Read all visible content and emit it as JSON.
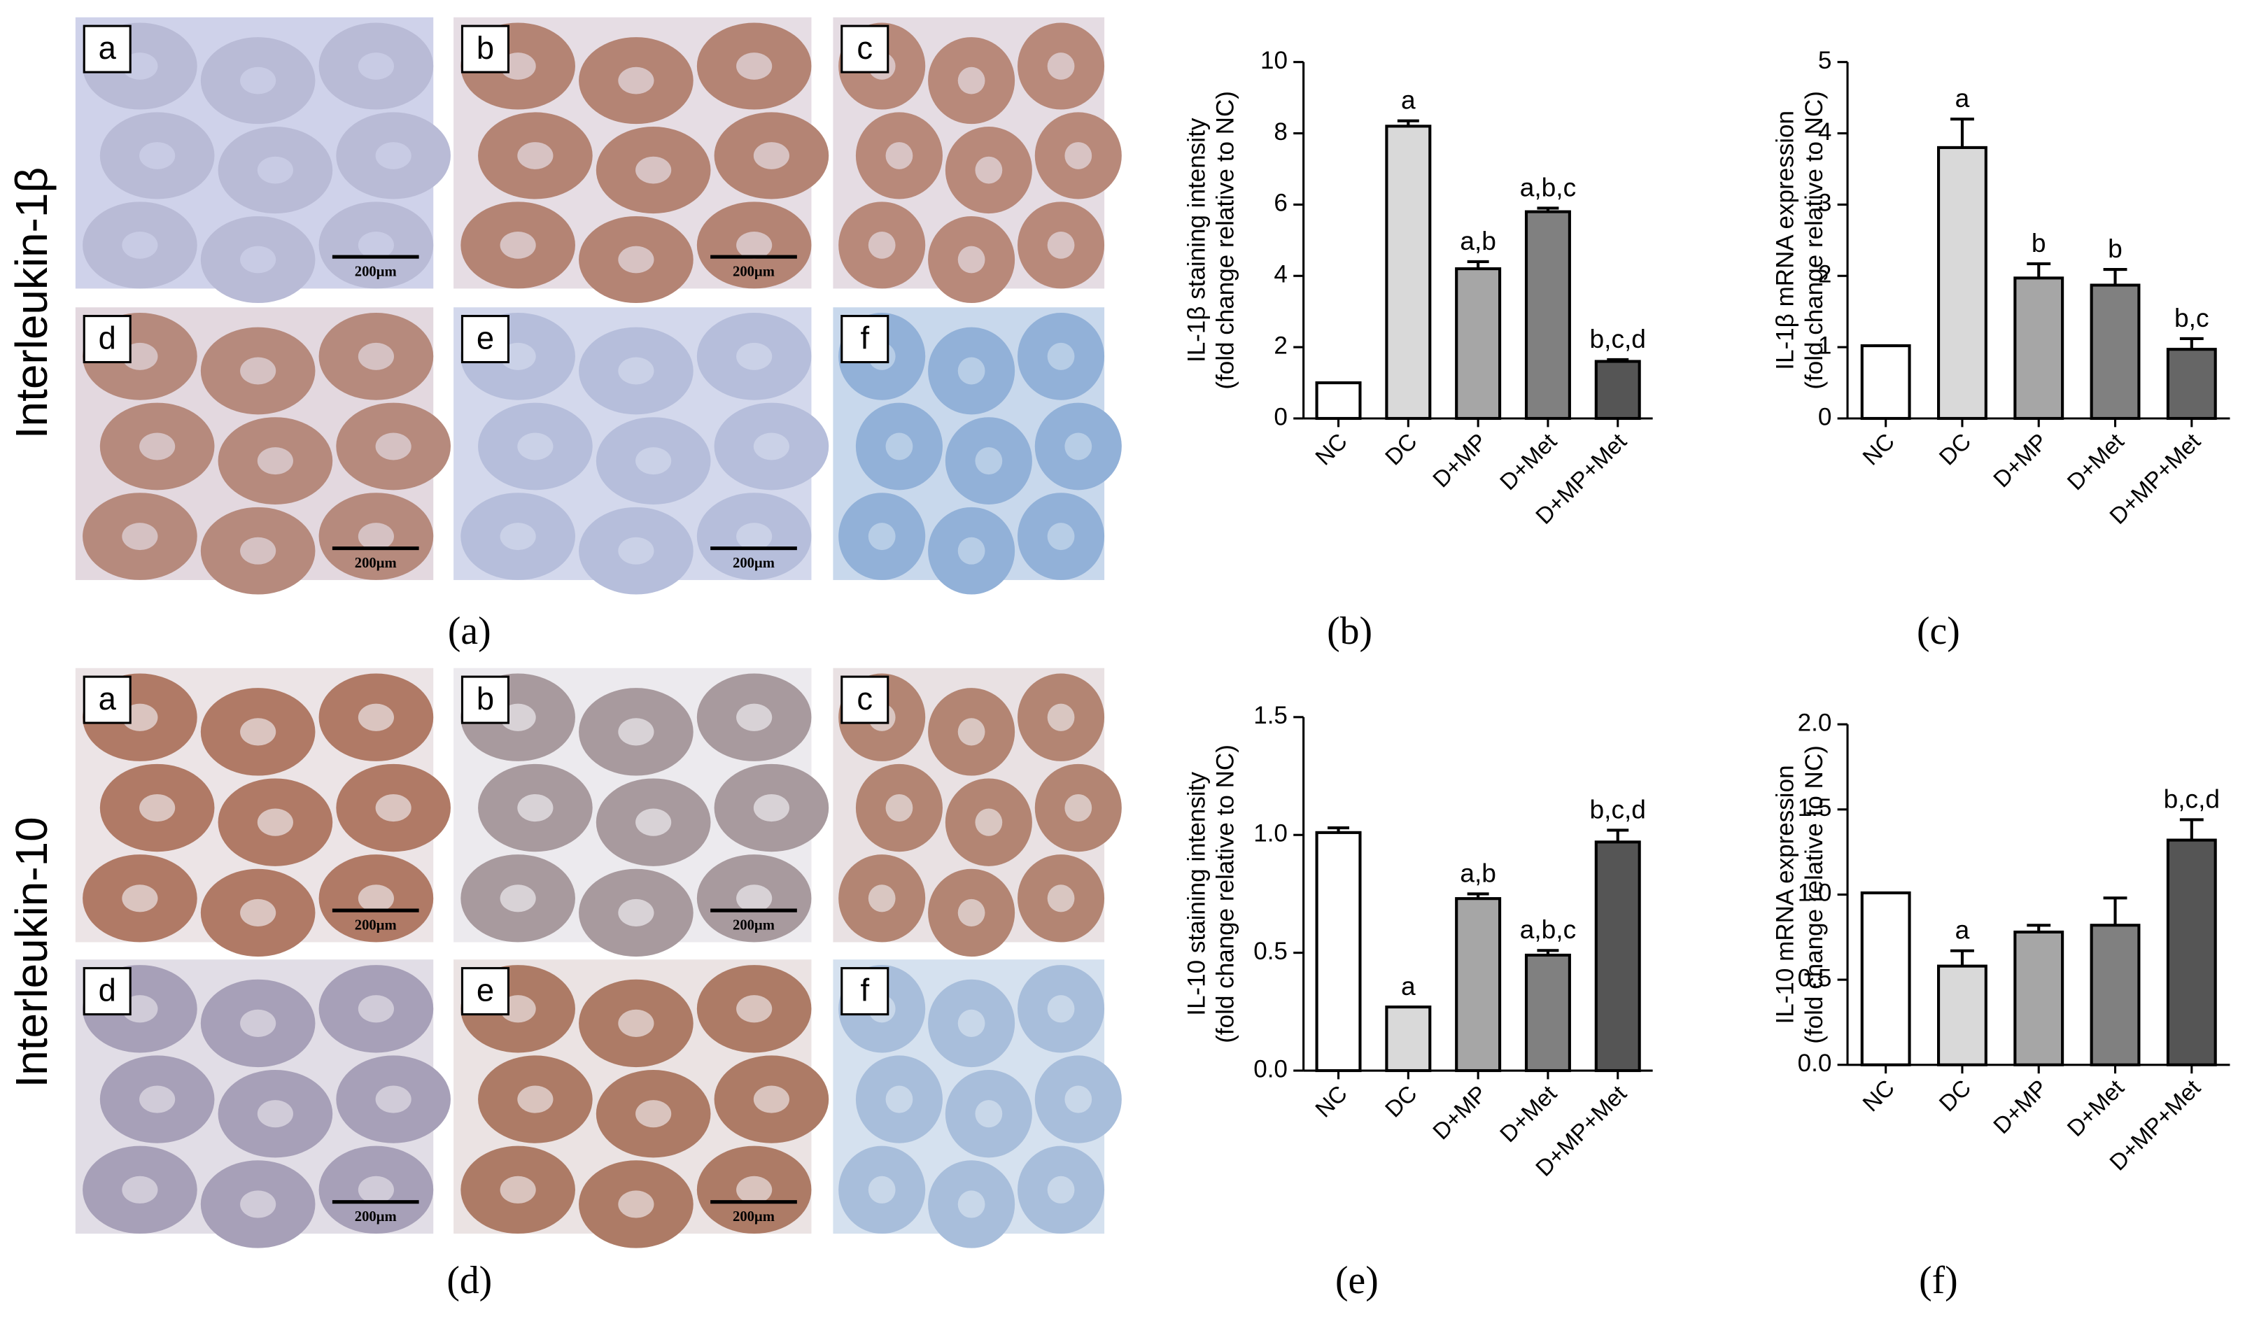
{
  "row_labels": [
    "Interleukin-1β",
    "Interleukin-10"
  ],
  "panel_captions": [
    "(a)",
    "(b)",
    "(c)",
    "(d)",
    "(e)",
    "(f)"
  ],
  "image_letters": [
    "a",
    "b",
    "c",
    "d",
    "e",
    "f"
  ],
  "scale_bar": "200µm",
  "chart_data": [
    {
      "type": "bar",
      "ylabel": [
        "IL-1β staining intensity",
        "(fold change relative to NC)"
      ],
      "categories": [
        "NC",
        "DC",
        "D+MP",
        "D+Met",
        "D+MP+Met"
      ],
      "values": [
        1.0,
        8.2,
        4.2,
        5.8,
        1.6
      ],
      "errors": [
        0,
        0.15,
        0.2,
        0.1,
        0.05
      ],
      "annotations": [
        null,
        "a",
        "a,b",
        "a,b,c",
        "b,c,d"
      ],
      "colors": [
        "#ffffff",
        "#d9d9d9",
        "#a6a6a6",
        "#808080",
        "#555555"
      ],
      "ylim": [
        0,
        10
      ],
      "yticks": [
        0,
        2,
        4,
        6,
        8,
        10
      ]
    },
    {
      "type": "bar",
      "ylabel": [
        "IL-1β mRNA expression",
        "(fold change relative to NC)"
      ],
      "categories": [
        "NC",
        "DC",
        "D+MP",
        "D+Met",
        "D+MP+Met"
      ],
      "values": [
        1.02,
        3.8,
        1.97,
        1.87,
        0.97
      ],
      "errors": [
        0,
        0.4,
        0.2,
        0.22,
        0.15
      ],
      "annotations": [
        null,
        "a",
        "b",
        "b",
        "b,c"
      ],
      "colors": [
        "#ffffff",
        "#d9d9d9",
        "#a6a6a6",
        "#808080",
        "#666666"
      ],
      "ylim": [
        0,
        5
      ],
      "yticks": [
        0,
        1,
        2,
        3,
        4,
        5
      ]
    },
    {
      "type": "bar",
      "ylabel": [
        "IL-10 staining intensity",
        "(fold change relative to NC)"
      ],
      "categories": [
        "NC",
        "DC",
        "D+MP",
        "D+Met",
        "D+MP+Met"
      ],
      "values": [
        1.01,
        0.27,
        0.73,
        0.49,
        0.97
      ],
      "errors": [
        0.02,
        0,
        0.02,
        0.02,
        0.05
      ],
      "annotations": [
        null,
        "a",
        "a,b",
        "a,b,c",
        "b,c,d"
      ],
      "colors": [
        "#ffffff",
        "#d9d9d9",
        "#a6a6a6",
        "#808080",
        "#555555"
      ],
      "ylim": [
        0,
        1.5
      ],
      "yticks": [
        {
          "value": 0,
          "label": "0.0"
        },
        {
          "value": 0.5,
          "label": "0.5"
        },
        {
          "value": 1,
          "label": "1.0"
        },
        {
          "value": 1.5,
          "label": "1.5"
        }
      ]
    },
    {
      "type": "bar",
      "ylabel": [
        "IL-10 mRNA expression",
        "(fold change relative to NC)"
      ],
      "categories": [
        "NC",
        "DC",
        "D+MP",
        "D+Met",
        "D+MP+Met"
      ],
      "values": [
        1.01,
        0.58,
        0.78,
        0.82,
        1.32
      ],
      "errors": [
        0,
        0.09,
        0.04,
        0.16,
        0.12
      ],
      "annotations": [
        null,
        "a",
        null,
        null,
        "b,c,d"
      ],
      "colors": [
        "#ffffff",
        "#d9d9d9",
        "#a6a6a6",
        "#808080",
        "#555555"
      ],
      "ylim": [
        0,
        2
      ],
      "yticks": [
        {
          "value": 0,
          "label": "0.0"
        },
        {
          "value": 0.5,
          "label": "0.5"
        },
        {
          "value": 1,
          "label": "1.0"
        },
        {
          "value": 1.5,
          "label": "1.5"
        },
        {
          "value": 2,
          "label": "2.0"
        }
      ]
    }
  ]
}
